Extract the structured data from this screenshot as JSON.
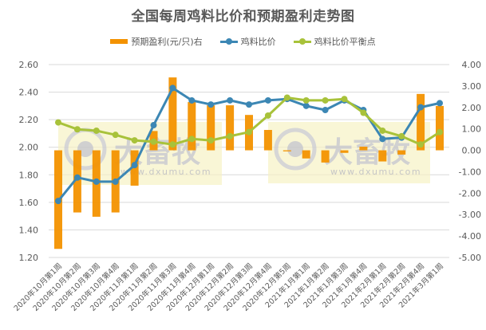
{
  "chart_data": {
    "type": "bar+line",
    "title": "全国每周鸡料比价和预期盈利走势图",
    "categories": [
      "2020年10月第1周",
      "2020年10月第2周",
      "2020年10月第3周",
      "2020年10月第4周",
      "2020年11月第1周",
      "2020年11月第2周",
      "2020年11月第3周",
      "2020年11月第4周",
      "2020年12月第1周",
      "2020年12月第2周",
      "2020年12月第3周",
      "2020年12月第4周",
      "2020年12月第5周",
      "2021年1月第1周",
      "2021年1月第2周",
      "2021年1月第3周",
      "2021年1月第4周",
      "2021年2月第1周",
      "2021年2月第2周",
      "2021年2月第4周",
      "2021年3月第1周"
    ],
    "series": [
      {
        "name": "预期盈利(元/只)右",
        "type": "bar",
        "axis": "right",
        "color": "#F39200",
        "values": [
          -4.6,
          -2.9,
          -3.1,
          -2.9,
          -1.65,
          0.9,
          3.4,
          2.25,
          2.1,
          2.1,
          1.65,
          0.95,
          -0.05,
          -0.38,
          -0.57,
          -0.12,
          0.17,
          -0.52,
          -0.2,
          2.63,
          2.07
        ]
      },
      {
        "name": "鸡料比价",
        "type": "line",
        "axis": "left",
        "color": "#3C87B4",
        "values": [
          1.61,
          1.78,
          1.75,
          1.75,
          1.87,
          2.16,
          2.43,
          2.34,
          2.31,
          2.34,
          2.31,
          2.34,
          2.35,
          2.3,
          2.27,
          2.34,
          2.27,
          2.06,
          2.07,
          2.29,
          2.32
        ]
      },
      {
        "name": "鸡料比价平衡点",
        "type": "line",
        "axis": "left",
        "color": "#A8C23A",
        "values": [
          2.18,
          2.13,
          2.12,
          2.09,
          2.05,
          2.04,
          2.02,
          2.06,
          2.05,
          2.08,
          2.11,
          2.23,
          2.36,
          2.34,
          2.34,
          2.35,
          2.25,
          2.12,
          2.08,
          2.02,
          2.11
        ]
      }
    ],
    "left_axis": {
      "min": 1.2,
      "max": 2.6,
      "step": 0.2,
      "ticks": [
        "2.60",
        "2.40",
        "2.20",
        "2.00",
        "1.80",
        "1.60",
        "1.40",
        "1.20"
      ]
    },
    "right_axis": {
      "min": -5,
      "max": 4,
      "step": 1,
      "ticks": [
        "4.00",
        "3.00",
        "2.00",
        "1.00",
        "0.00",
        "-1.00",
        "-2.00",
        "-3.00",
        "-4.00",
        "-5.00"
      ]
    },
    "xlabel": "",
    "ylabel": "",
    "grid": true,
    "legend_position": "top"
  },
  "watermark": {
    "brand": "大畜牧",
    "url": "www.dxumu.com"
  }
}
